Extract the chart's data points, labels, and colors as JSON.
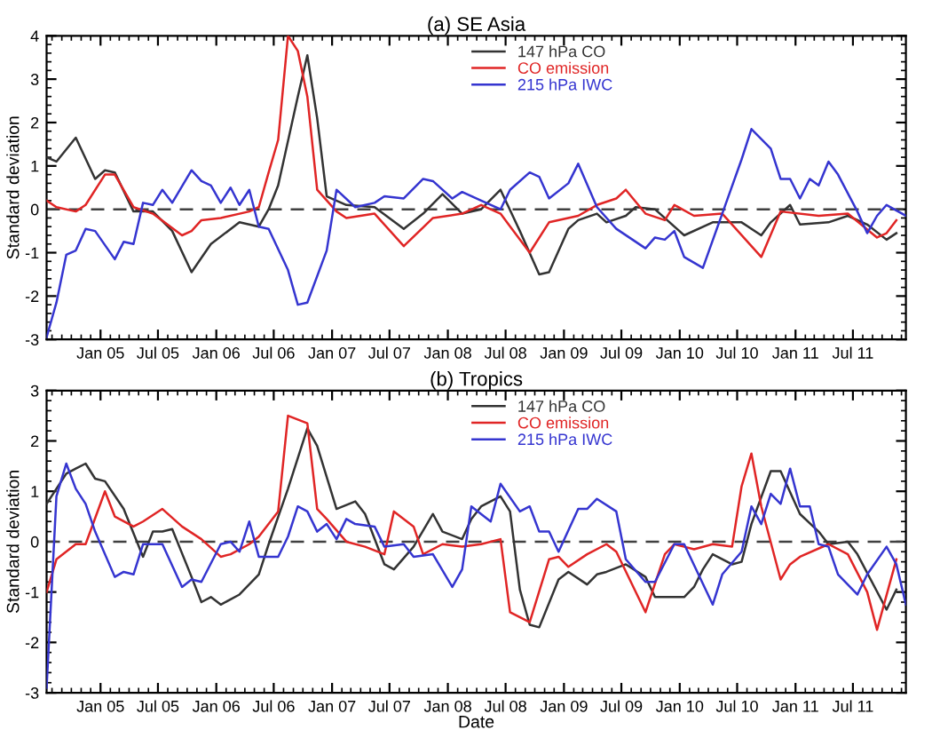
{
  "chart_data": [
    {
      "type": "line",
      "title": "(a) SE Asia",
      "ylabel": "Standard deviation",
      "legend": "top right",
      "grid": false,
      "xlim": [
        "2004-07-15",
        "2011-12-15"
      ],
      "xticks": [
        {
          "value": "2005-01-01",
          "label": "Jan 05"
        },
        {
          "value": "2005-07-01",
          "label": "Jul 05"
        },
        {
          "value": "2006-01-01",
          "label": "Jan 06"
        },
        {
          "value": "2006-07-01",
          "label": "Jul 06"
        },
        {
          "value": "2007-01-01",
          "label": "Jan 07"
        },
        {
          "value": "2007-07-01",
          "label": "Jul 07"
        },
        {
          "value": "2008-01-01",
          "label": "Jan 08"
        },
        {
          "value": "2008-07-01",
          "label": "Jul 08"
        },
        {
          "value": "2009-01-01",
          "label": "Jan 09"
        },
        {
          "value": "2009-07-01",
          "label": "Jul 09"
        },
        {
          "value": "2010-01-01",
          "label": "Jan 10"
        },
        {
          "value": "2010-07-01",
          "label": "Jul 10"
        },
        {
          "value": "2011-01-01",
          "label": "Jan 11"
        },
        {
          "value": "2011-07-01",
          "label": "Jul 11"
        }
      ],
      "ylim": [
        -3,
        4
      ],
      "yticks": [
        -3,
        -2,
        -1,
        0,
        1,
        2,
        3,
        4
      ],
      "ref_lines": [
        {
          "axis": "y",
          "value": 0,
          "color": "#404040",
          "line_style": "dashed"
        }
      ],
      "series": [
        {
          "name": "147 hPa CO",
          "color": "#333333",
          "x": [
            "2004-07-15",
            "2004-08-15",
            "2004-10-15",
            "2004-12-15",
            "2005-01-15",
            "2005-02-15",
            "2005-04-15",
            "2005-06-15",
            "2005-08-15",
            "2005-10-15",
            "2005-12-15",
            "2006-03-15",
            "2006-05-15",
            "2006-06-15",
            "2006-07-15",
            "2006-09-15",
            "2006-10-15",
            "2006-11-15",
            "2006-12-15",
            "2007-02-15",
            "2007-05-15",
            "2007-08-15",
            "2007-10-15",
            "2007-12-15",
            "2008-02-15",
            "2008-04-15",
            "2008-06-15",
            "2008-08-15",
            "2008-10-15",
            "2008-11-15",
            "2009-01-15",
            "2009-02-15",
            "2009-04-15",
            "2009-05-15",
            "2009-07-15",
            "2009-08-15",
            "2009-10-15",
            "2010-01-15",
            "2010-04-15",
            "2010-07-15",
            "2010-09-15",
            "2010-10-15",
            "2010-12-15",
            "2011-01-15",
            "2011-04-15",
            "2011-06-15",
            "2011-08-15",
            "2011-10-15",
            "2011-11-15"
          ],
          "values": [
            1.2,
            1.1,
            1.65,
            0.7,
            0.9,
            0.85,
            -0.05,
            -0.05,
            -0.5,
            -1.45,
            -0.8,
            -0.3,
            -0.4,
            0,
            0.55,
            2.6,
            3.55,
            2.1,
            0.3,
            0.1,
            0.05,
            -0.45,
            -0.1,
            0.35,
            -0.1,
            0,
            0.45,
            -0.5,
            -1.5,
            -1.45,
            -0.45,
            -0.25,
            -0.1,
            -0.3,
            -0.15,
            0.05,
            0,
            -0.6,
            -0.3,
            -0.3,
            -0.6,
            -0.3,
            0.1,
            -0.35,
            -0.3,
            -0.15,
            -0.35,
            -0.7,
            -0.55
          ]
        },
        {
          "name": "CO emission",
          "color": "#e02525",
          "x": [
            "2004-07-15",
            "2004-08-15",
            "2004-10-15",
            "2004-11-15",
            "2005-01-15",
            "2005-02-15",
            "2005-04-15",
            "2005-06-15",
            "2005-09-15",
            "2005-10-15",
            "2005-11-15",
            "2006-01-15",
            "2006-04-15",
            "2006-05-15",
            "2006-06-15",
            "2006-07-15",
            "2006-08-15",
            "2006-09-15",
            "2006-10-15",
            "2006-11-15",
            "2007-01-15",
            "2007-02-15",
            "2007-05-15",
            "2007-08-15",
            "2007-11-15",
            "2008-02-15",
            "2008-04-15",
            "2008-06-15",
            "2008-09-15",
            "2008-11-15",
            "2009-02-15",
            "2009-04-15",
            "2009-06-15",
            "2009-07-15",
            "2009-09-15",
            "2009-11-15",
            "2009-12-15",
            "2010-02-15",
            "2010-05-15",
            "2010-09-15",
            "2010-11-15",
            "2011-03-15",
            "2011-06-15",
            "2011-09-15",
            "2011-10-15",
            "2011-11-15"
          ],
          "values": [
            0.2,
            0.05,
            -0.05,
            0.1,
            0.8,
            0.8,
            0.05,
            -0.1,
            -0.6,
            -0.5,
            -0.25,
            -0.2,
            -0.05,
            0.05,
            0.85,
            1.6,
            4.0,
            3.65,
            2.6,
            0.45,
            -0.05,
            -0.2,
            -0.1,
            -0.85,
            -0.2,
            -0.1,
            0.1,
            -0.1,
            -1.0,
            -0.3,
            -0.15,
            0.1,
            0.25,
            0.45,
            -0.1,
            -0.25,
            0.1,
            -0.15,
            -0.1,
            -1.1,
            -0.05,
            -0.15,
            -0.1,
            -0.65,
            -0.55,
            -0.25
          ]
        },
        {
          "name": "215 hPa IWC",
          "color": "#3535d0",
          "x": [
            "2004-07-15",
            "2004-08-15",
            "2004-09-15",
            "2004-10-15",
            "2004-11-15",
            "2004-12-15",
            "2005-02-15",
            "2005-03-15",
            "2005-04-15",
            "2005-05-15",
            "2005-06-15",
            "2005-07-15",
            "2005-08-15",
            "2005-10-15",
            "2005-11-15",
            "2005-12-15",
            "2006-01-15",
            "2006-02-15",
            "2006-03-15",
            "2006-04-15",
            "2006-05-15",
            "2006-06-15",
            "2006-08-15",
            "2006-09-15",
            "2006-10-15",
            "2006-12-15",
            "2007-01-15",
            "2007-03-15",
            "2007-05-15",
            "2007-06-15",
            "2007-08-15",
            "2007-10-15",
            "2007-11-15",
            "2008-01-15",
            "2008-02-15",
            "2008-04-15",
            "2008-06-15",
            "2008-07-15",
            "2008-09-15",
            "2008-10-15",
            "2008-11-15",
            "2009-01-15",
            "2009-02-15",
            "2009-04-15",
            "2009-06-15",
            "2009-09-15",
            "2009-10-15",
            "2009-11-15",
            "2009-12-15",
            "2010-01-15",
            "2010-03-15",
            "2010-05-15",
            "2010-07-15",
            "2010-08-15",
            "2010-10-15",
            "2010-11-15",
            "2010-12-15",
            "2011-01-15",
            "2011-02-15",
            "2011-03-15",
            "2011-04-15",
            "2011-05-15",
            "2011-07-15",
            "2011-08-15",
            "2011-09-15",
            "2011-10-15",
            "2011-12-15"
          ],
          "values": [
            -2.95,
            -2.15,
            -1.05,
            -0.95,
            -0.45,
            -0.5,
            -1.15,
            -0.75,
            -0.8,
            0.15,
            0.1,
            0.45,
            0.15,
            0.9,
            0.65,
            0.55,
            0.15,
            0.5,
            0.1,
            0.45,
            -0.4,
            -0.45,
            -1.4,
            -2.2,
            -2.15,
            -0.95,
            0.45,
            0.05,
            0.15,
            0.3,
            0.25,
            0.7,
            0.65,
            0.25,
            0.4,
            0.2,
            0,
            0.45,
            0.85,
            0.75,
            0.25,
            0.6,
            1.05,
            0.05,
            -0.45,
            -0.9,
            -0.65,
            -0.7,
            -0.5,
            -1.1,
            -1.35,
            -0.1,
            1.15,
            1.85,
            1.4,
            0.7,
            0.7,
            0.25,
            0.7,
            0.55,
            1.1,
            0.8,
            -0.05,
            -0.55,
            -0.15,
            0.1,
            -0.15
          ]
        }
      ]
    },
    {
      "type": "line",
      "title": "(b) Tropics",
      "ylabel": "Standard deviation",
      "xlabel": "Date",
      "legend": "top right",
      "grid": false,
      "xlim": [
        "2004-07-15",
        "2011-12-15"
      ],
      "xticks": [
        {
          "value": "2005-01-01",
          "label": "Jan 05"
        },
        {
          "value": "2005-07-01",
          "label": "Jul 05"
        },
        {
          "value": "2006-01-01",
          "label": "Jan 06"
        },
        {
          "value": "2006-07-01",
          "label": "Jul 06"
        },
        {
          "value": "2007-01-01",
          "label": "Jan 07"
        },
        {
          "value": "2007-07-01",
          "label": "Jul 07"
        },
        {
          "value": "2008-01-01",
          "label": "Jan 08"
        },
        {
          "value": "2008-07-01",
          "label": "Jul 08"
        },
        {
          "value": "2009-01-01",
          "label": "Jan 09"
        },
        {
          "value": "2009-07-01",
          "label": "Jul 09"
        },
        {
          "value": "2010-01-01",
          "label": "Jan 10"
        },
        {
          "value": "2010-07-01",
          "label": "Jul 10"
        },
        {
          "value": "2011-01-01",
          "label": "Jan 11"
        },
        {
          "value": "2011-07-01",
          "label": "Jul 11"
        }
      ],
      "ylim": [
        -3,
        3
      ],
      "yticks": [
        -3,
        -2,
        -1,
        0,
        1,
        2,
        3
      ],
      "ref_lines": [
        {
          "axis": "y",
          "value": 0,
          "color": "#404040",
          "line_style": "dashed"
        }
      ],
      "series": [
        {
          "name": "147 hPa CO",
          "color": "#333333",
          "x": [
            "2004-07-15",
            "2004-09-15",
            "2004-10-15",
            "2004-11-15",
            "2004-12-15",
            "2005-01-15",
            "2005-03-15",
            "2005-05-15",
            "2005-06-15",
            "2005-07-15",
            "2005-08-15",
            "2005-10-15",
            "2005-11-15",
            "2005-12-15",
            "2006-01-15",
            "2006-03-15",
            "2006-05-15",
            "2006-06-15",
            "2006-08-15",
            "2006-10-15",
            "2006-11-15",
            "2007-01-15",
            "2007-03-15",
            "2007-04-15",
            "2007-06-15",
            "2007-07-15",
            "2007-09-15",
            "2007-11-15",
            "2007-12-15",
            "2008-02-15",
            "2008-03-15",
            "2008-04-15",
            "2008-06-15",
            "2008-07-15",
            "2008-08-15",
            "2008-09-15",
            "2008-10-15",
            "2008-12-15",
            "2009-01-15",
            "2009-03-15",
            "2009-04-15",
            "2009-05-15",
            "2009-07-15",
            "2009-09-15",
            "2009-10-15",
            "2010-01-15",
            "2010-02-15",
            "2010-03-15",
            "2010-04-15",
            "2010-06-15",
            "2010-07-15",
            "2010-08-15",
            "2010-10-15",
            "2010-11-15",
            "2011-01-15",
            "2011-03-15",
            "2011-04-15",
            "2011-06-15",
            "2011-07-15",
            "2011-10-15",
            "2011-11-15"
          ],
          "values": [
            0.75,
            1.35,
            1.45,
            1.55,
            1.25,
            1.2,
            0.65,
            -0.3,
            0.2,
            0.2,
            0.25,
            -0.7,
            -1.2,
            -1.1,
            -1.25,
            -1.05,
            -0.65,
            -0.05,
            1.05,
            2.25,
            1.9,
            0.65,
            0.8,
            0.55,
            -0.45,
            -0.55,
            -0.1,
            0.55,
            0.2,
            0.05,
            0.45,
            0.7,
            0.9,
            0.6,
            -0.95,
            -1.65,
            -1.7,
            -0.75,
            -0.6,
            -0.85,
            -0.65,
            -0.6,
            -0.45,
            -0.7,
            -1.1,
            -1.1,
            -0.9,
            -0.55,
            -0.25,
            -0.45,
            -0.4,
            0.35,
            1.4,
            1.4,
            0.55,
            0.2,
            -0.05,
            0,
            -0.25,
            -1.35,
            -0.95
          ]
        },
        {
          "name": "CO emission",
          "color": "#e02525",
          "x": [
            "2004-07-15",
            "2004-08-15",
            "2004-10-15",
            "2004-11-15",
            "2005-01-15",
            "2005-02-15",
            "2005-04-15",
            "2005-05-15",
            "2005-07-15",
            "2005-09-15",
            "2005-11-15",
            "2006-01-15",
            "2006-02-15",
            "2006-04-15",
            "2006-05-15",
            "2006-07-15",
            "2006-08-15",
            "2006-10-15",
            "2006-11-15",
            "2006-12-15",
            "2007-02-15",
            "2007-04-15",
            "2007-06-15",
            "2007-07-15",
            "2007-09-15",
            "2007-10-15",
            "2007-12-15",
            "2008-02-15",
            "2008-04-15",
            "2008-06-15",
            "2008-07-15",
            "2008-09-15",
            "2008-11-15",
            "2008-12-15",
            "2009-01-15",
            "2009-03-15",
            "2009-05-15",
            "2009-06-15",
            "2009-09-15",
            "2009-11-15",
            "2009-12-15",
            "2010-01-15",
            "2010-02-15",
            "2010-04-15",
            "2010-06-15",
            "2010-07-15",
            "2010-08-15",
            "2010-09-15",
            "2010-11-15",
            "2010-12-15",
            "2011-01-15",
            "2011-04-15",
            "2011-06-15",
            "2011-08-15",
            "2011-09-15",
            "2011-11-15"
          ],
          "values": [
            -1.0,
            -0.35,
            -0.05,
            -0.05,
            1.0,
            0.5,
            0.3,
            0.4,
            0.65,
            0.3,
            0.05,
            -0.3,
            -0.25,
            -0.05,
            0.1,
            0.6,
            2.5,
            2.35,
            0.65,
            0.45,
            0,
            -0.1,
            -0.25,
            0.6,
            0.3,
            -0.25,
            -0.05,
            -0.1,
            -0.05,
            0.05,
            -1.4,
            -1.6,
            -0.35,
            -0.3,
            -0.5,
            -0.25,
            -0.05,
            -0.2,
            -1.4,
            -0.25,
            -0.05,
            -0.1,
            -0.15,
            -0.05,
            -0.1,
            1.1,
            1.75,
            0.7,
            -0.75,
            -0.45,
            -0.3,
            -0.05,
            -0.25,
            -1.0,
            -1.75,
            -0.35
          ]
        },
        {
          "name": "215 hPa IWC",
          "color": "#3535d0",
          "x": [
            "2004-07-15",
            "2004-08-15",
            "2004-09-15",
            "2004-10-15",
            "2004-11-15",
            "2004-12-15",
            "2005-02-15",
            "2005-03-15",
            "2005-04-15",
            "2005-05-15",
            "2005-07-15",
            "2005-09-15",
            "2005-10-15",
            "2005-11-15",
            "2006-01-15",
            "2006-02-15",
            "2006-03-15",
            "2006-04-15",
            "2006-05-15",
            "2006-07-15",
            "2006-08-15",
            "2006-09-15",
            "2006-10-15",
            "2006-11-15",
            "2006-12-15",
            "2007-01-15",
            "2007-02-15",
            "2007-03-15",
            "2007-05-15",
            "2007-06-15",
            "2007-08-15",
            "2007-09-15",
            "2007-11-15",
            "2008-01-15",
            "2008-02-15",
            "2008-03-15",
            "2008-05-15",
            "2008-06-15",
            "2008-08-15",
            "2008-09-15",
            "2008-10-15",
            "2008-11-15",
            "2008-12-15",
            "2009-02-15",
            "2009-03-15",
            "2009-04-15",
            "2009-06-15",
            "2009-07-15",
            "2009-09-15",
            "2009-10-15",
            "2009-12-15",
            "2010-01-15",
            "2010-04-15",
            "2010-05-15",
            "2010-07-15",
            "2010-08-15",
            "2010-09-15",
            "2010-10-15",
            "2010-11-15",
            "2010-12-15",
            "2011-01-15",
            "2011-02-15",
            "2011-03-15",
            "2011-04-15",
            "2011-05-15",
            "2011-07-15",
            "2011-08-15",
            "2011-10-15",
            "2011-11-15",
            "2011-12-15"
          ],
          "values": [
            -2.9,
            0.9,
            1.55,
            1.05,
            0.75,
            0.2,
            -0.7,
            -0.6,
            -0.65,
            -0.05,
            -0.05,
            -0.9,
            -0.75,
            -0.8,
            -0.05,
            0,
            -0.2,
            0.4,
            -0.3,
            -0.3,
            0.1,
            0.7,
            0.6,
            0.2,
            0.35,
            0.05,
            0.45,
            0.35,
            0.3,
            -0.1,
            -0.05,
            -0.3,
            -0.25,
            -0.9,
            -0.55,
            0.7,
            0.4,
            1.15,
            0.6,
            0.7,
            0.2,
            0.2,
            -0.2,
            0.65,
            0.65,
            0.85,
            0.6,
            -0.35,
            -0.8,
            -0.8,
            -0.05,
            -0.05,
            -1.25,
            -0.65,
            -0.2,
            0.7,
            0.35,
            0.95,
            0.75,
            1.45,
            0.7,
            0.7,
            -0.05,
            -0.1,
            -0.65,
            -1.05,
            -0.65,
            -0.1,
            -0.45,
            -1.25
          ]
        }
      ]
    }
  ]
}
